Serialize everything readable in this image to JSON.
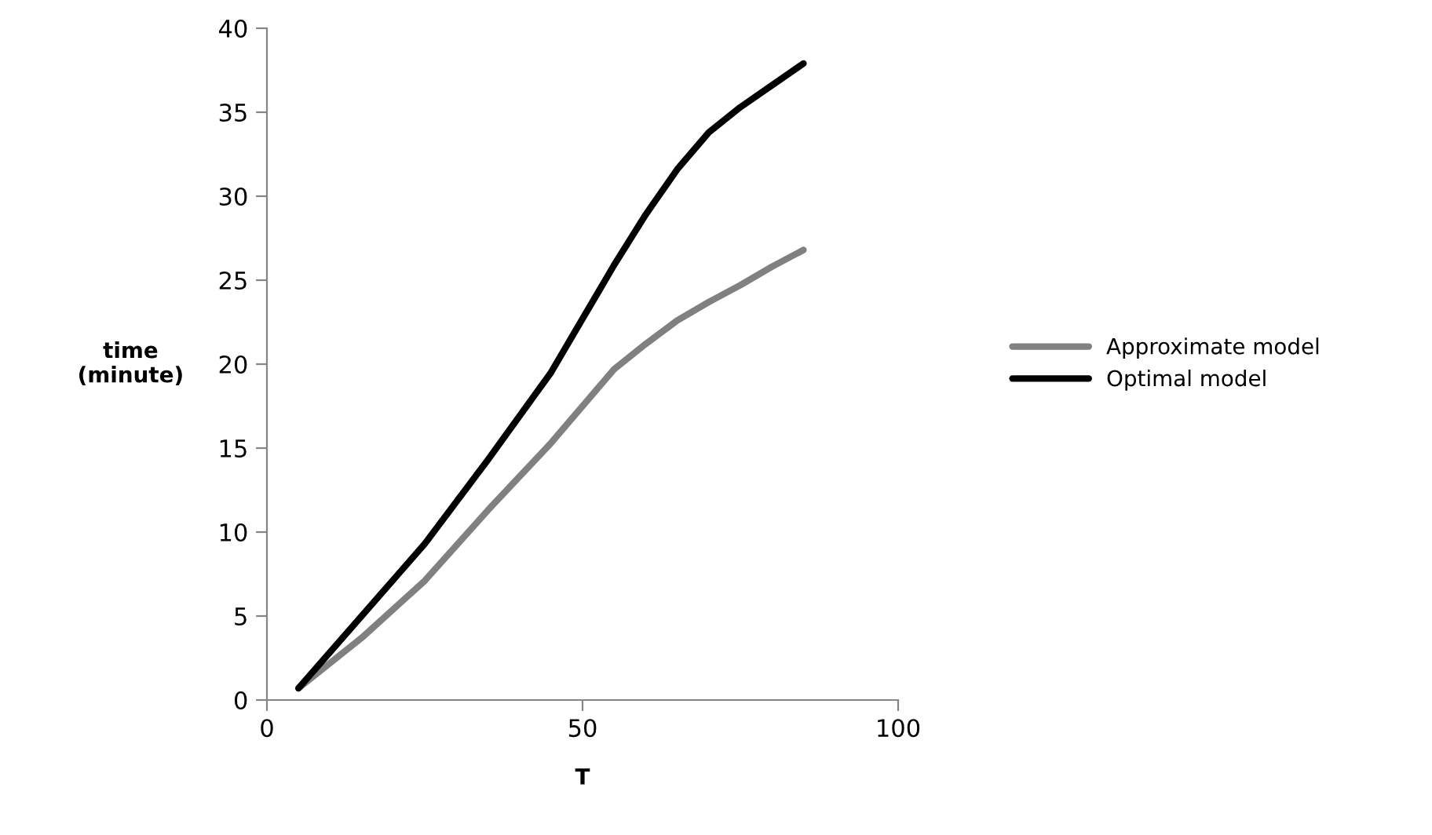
{
  "chart_data": {
    "type": "line",
    "xlabel": "T",
    "ylabel": "time\n(minute)",
    "x": [
      5,
      15,
      25,
      35,
      45,
      55,
      60,
      65,
      70,
      75,
      80,
      85
    ],
    "series": [
      {
        "name": "Approximate model",
        "color": "#808080",
        "values": [
          0.7,
          3.7,
          7.1,
          11.3,
          15.3,
          19.7,
          21.2,
          22.6,
          23.7,
          24.7,
          25.8,
          26.8
        ]
      },
      {
        "name": "Optimal model",
        "color": "#000000",
        "values": [
          0.7,
          5.0,
          9.3,
          14.3,
          19.5,
          25.9,
          28.9,
          31.6,
          33.8,
          35.3,
          36.6,
          37.9
        ]
      }
    ],
    "xlim": [
      0,
      100
    ],
    "xticks": [
      0,
      50,
      100
    ],
    "ylim": [
      0,
      40
    ],
    "yticks": [
      0,
      5,
      10,
      15,
      20,
      25,
      30,
      35,
      40
    ],
    "grid": false,
    "legend": "right",
    "marker": "none",
    "line_style": "solid"
  }
}
